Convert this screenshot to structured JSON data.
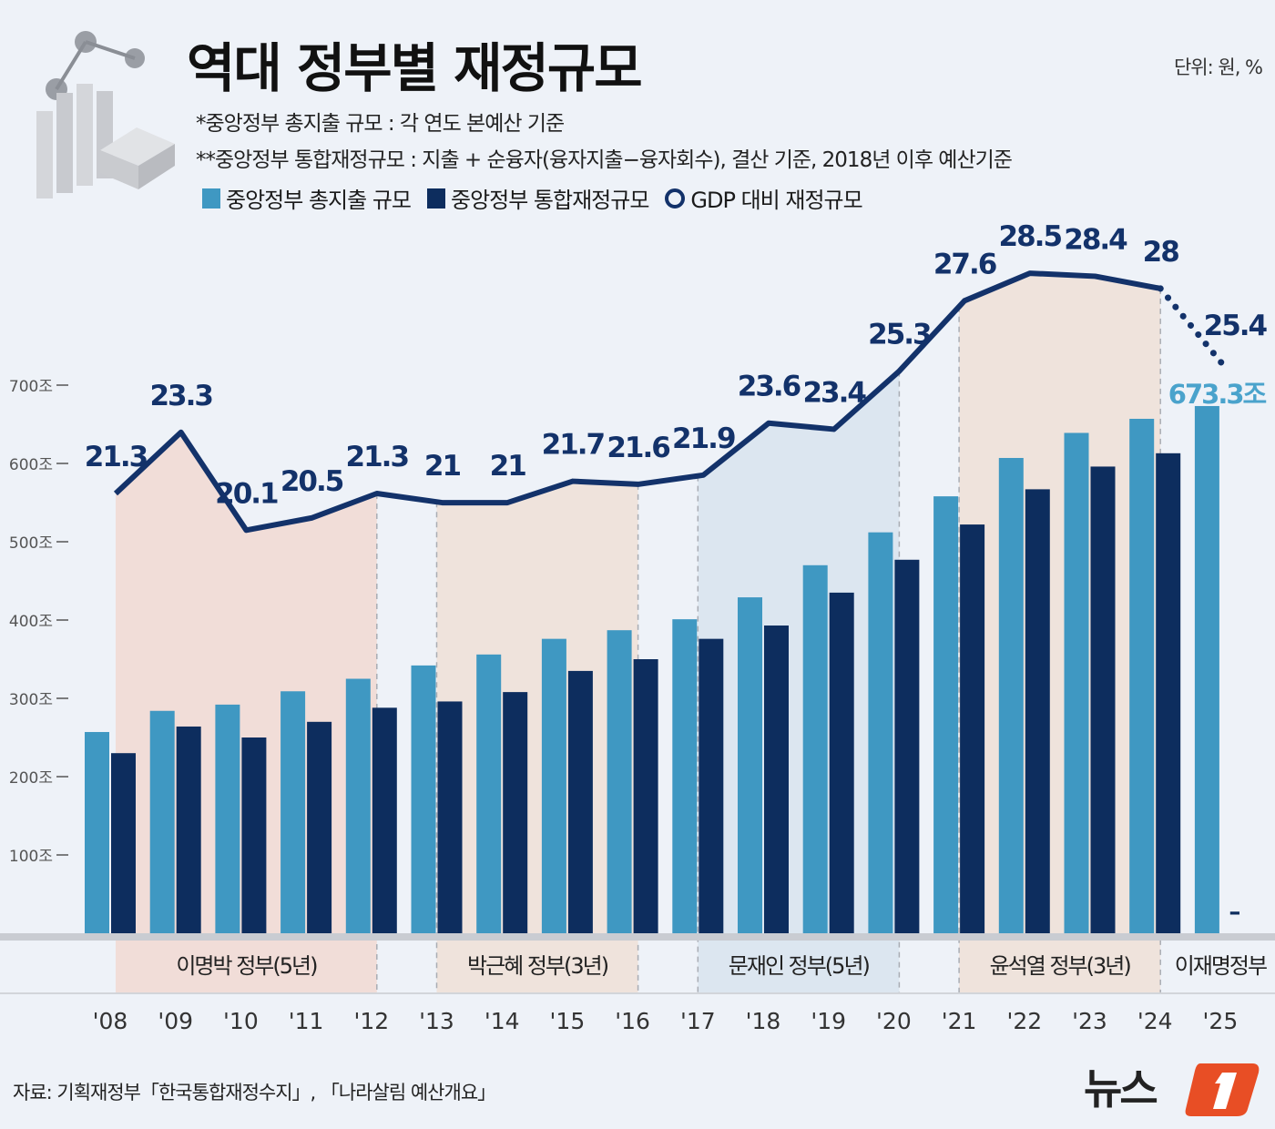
{
  "header": {
    "title": "역대 정부별 재정규모",
    "unit": "단위: 원, %",
    "note1": "*중앙정부 총지출 규모 : 각 연도 본예산 기준",
    "note2": "**중앙정부 통합재정규모 : 지출 + 순융자(융자지출−융자회수), 결산 기준, 2018년 이후 예산기준"
  },
  "source": "자료: 기획재정부「한국통합재정수지」, 「나라살림 예산개요」",
  "logo": "뉴스1",
  "colors": {
    "background": "#eef2f8",
    "total_bar": "#3f98c2",
    "integrated_bar": "#0d2d5e",
    "gdp_line": "#13326a",
    "lee_mb": "#f1ddd8",
    "park": "#efe3dc",
    "moon": "#dce6f0",
    "yoon": "#efe3dc"
  },
  "chart_data": {
    "type": "bar+line",
    "title": "역대 정부별 재정규모",
    "legend": {
      "position": "top-left",
      "entries": [
        "중앙정부 총지출 규모",
        "중앙정부 통합재정규모",
        "GDP 대비 재정규모"
      ]
    },
    "categories": [
      "'08",
      "'09",
      "'10",
      "'11",
      "'12",
      "'13",
      "'14",
      "'15",
      "'16",
      "'17",
      "'18",
      "'19",
      "'20",
      "'21",
      "'22",
      "'23",
      "'24",
      "'25"
    ],
    "y_axis": {
      "ticks": [
        100,
        200,
        300,
        400,
        500,
        600,
        700
      ],
      "tick_labels": [
        "100조",
        "200조",
        "300조",
        "400조",
        "500조",
        "600조",
        "700조"
      ],
      "ylim": [
        0,
        700
      ],
      "grid": false
    },
    "series": [
      {
        "name": "중앙정부 총지출 규모",
        "kind": "bar",
        "values": [
          257,
          284,
          292,
          309,
          325,
          342,
          356,
          376,
          387,
          401,
          429,
          470,
          512,
          558,
          607,
          639,
          657,
          673.3
        ]
      },
      {
        "name": "중앙정부 통합재정규모",
        "kind": "bar",
        "values": [
          230,
          264,
          250,
          270,
          288,
          296,
          308,
          335,
          350,
          376,
          393,
          435,
          477,
          522,
          567,
          596,
          613,
          null
        ],
        "missing_label": "–"
      },
      {
        "name": "GDP 대비 재정규모",
        "kind": "line",
        "unit": "%",
        "values": [
          21.3,
          23.3,
          20.1,
          20.5,
          21.3,
          21,
          21,
          21.7,
          21.6,
          21.9,
          23.6,
          23.4,
          25.3,
          27.6,
          28.5,
          28.4,
          28,
          25.4
        ],
        "labels": [
          "21.3",
          "23.3",
          "20.1",
          "20.5",
          "21.3",
          "21",
          "21",
          "21.7",
          "21.6",
          "21.9",
          "23.6",
          "23.4",
          "25.3",
          "27.6",
          "28.5",
          "28.4",
          "28",
          "25.4"
        ],
        "projected_from_index": 16
      }
    ],
    "annotations": [
      {
        "label": "673.3조",
        "category": "'25"
      }
    ],
    "governments": [
      {
        "label": "이명박 정부(5년)",
        "start": 0,
        "end": 4,
        "color": "#f1ddd8"
      },
      {
        "label": "박근혜 정부(3년)",
        "start": 5,
        "end": 8,
        "color": "#efe3dc"
      },
      {
        "label": "문재인 정부(5년)",
        "start": 9,
        "end": 12,
        "color": "#dce6f0"
      },
      {
        "label": "윤석열 정부(3년)",
        "start": 13,
        "end": 16,
        "color": "#efe3dc"
      },
      {
        "label": "이재명정부",
        "start": 17,
        "end": 17,
        "color": null
      }
    ]
  }
}
